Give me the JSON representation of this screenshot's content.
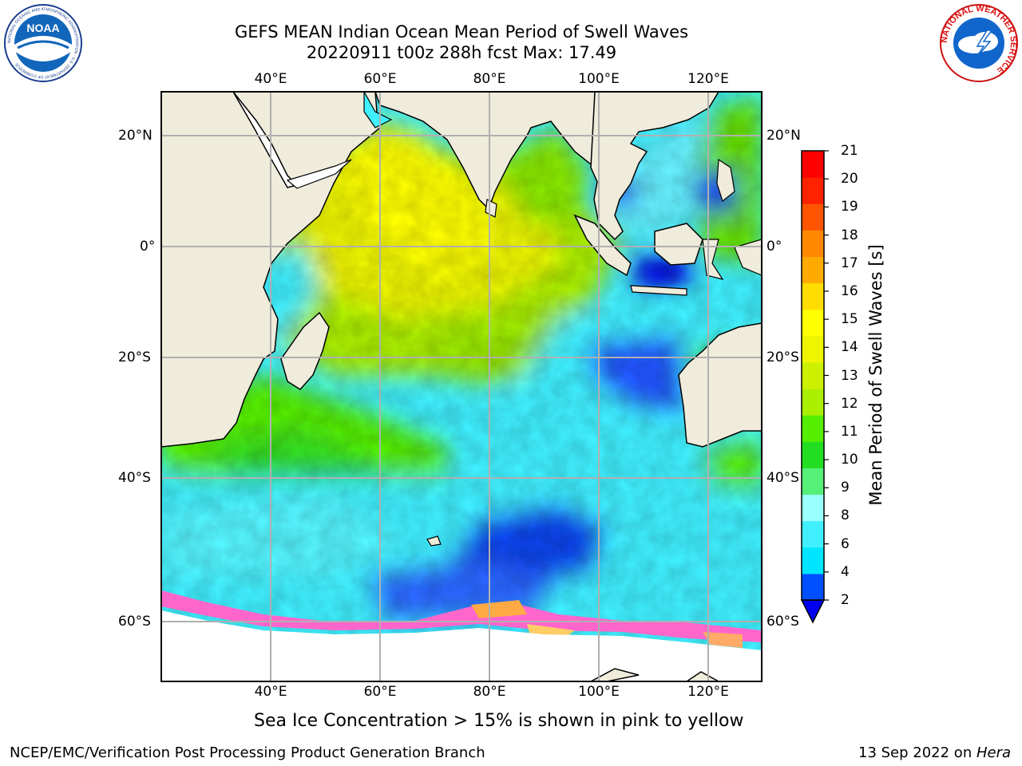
{
  "title": {
    "line1": "GEFS MEAN Indian Ocean Mean Period of Swell Waves",
    "line2": "20220911 t00z 288h fcst   Max: 17.49"
  },
  "map": {
    "lon_labels": [
      "40°E",
      "60°E",
      "80°E",
      "100°E",
      "120°E"
    ],
    "lat_labels": [
      "20°N",
      "0°",
      "20°S",
      "40°S",
      "60°S"
    ],
    "extent": {
      "lon_min": 20,
      "lon_max": 130,
      "lat_min": -70,
      "lat_max": 30
    },
    "colors": {
      "land": "#efecdc",
      "sea_ice": "#ff66cc",
      "grid": "#b0b0b0"
    }
  },
  "colorbar": {
    "label": "Mean Period of Swell Waves [s]",
    "ticks": [
      "21",
      "20",
      "19",
      "18",
      "17",
      "16",
      "15",
      "14",
      "13",
      "12",
      "11",
      "10",
      "9",
      "8",
      "6",
      "4",
      "2"
    ],
    "colors_bottom_to_top": [
      "#0050ff",
      "#00e5ff",
      "#40f0ff",
      "#99ffff",
      "#55f078",
      "#22dd22",
      "#55ee00",
      "#aaee00",
      "#ccf000",
      "#eef500",
      "#ffff00",
      "#ffdd00",
      "#ffaa00",
      "#ff8800",
      "#ff5500",
      "#ff2200",
      "#ff0000"
    ],
    "under_color": "#0000ee"
  },
  "footnote": "Sea Ice Concentration > 15% is shown in pink to yellow",
  "credits": {
    "left": "NCEP/EMC/Verification Post Processing Product Generation Branch",
    "right_date": "13 Sep 2022 on ",
    "right_host": "Hera"
  },
  "logos": {
    "noaa_text": "NOAA",
    "noaa_ring": "NATIONAL OCEANIC AND ATMOSPHERIC ADMINISTRATION · U.S. DEPARTMENT OF COMMERCE",
    "nws_ring": "NATIONAL WEATHER SERVICE"
  }
}
